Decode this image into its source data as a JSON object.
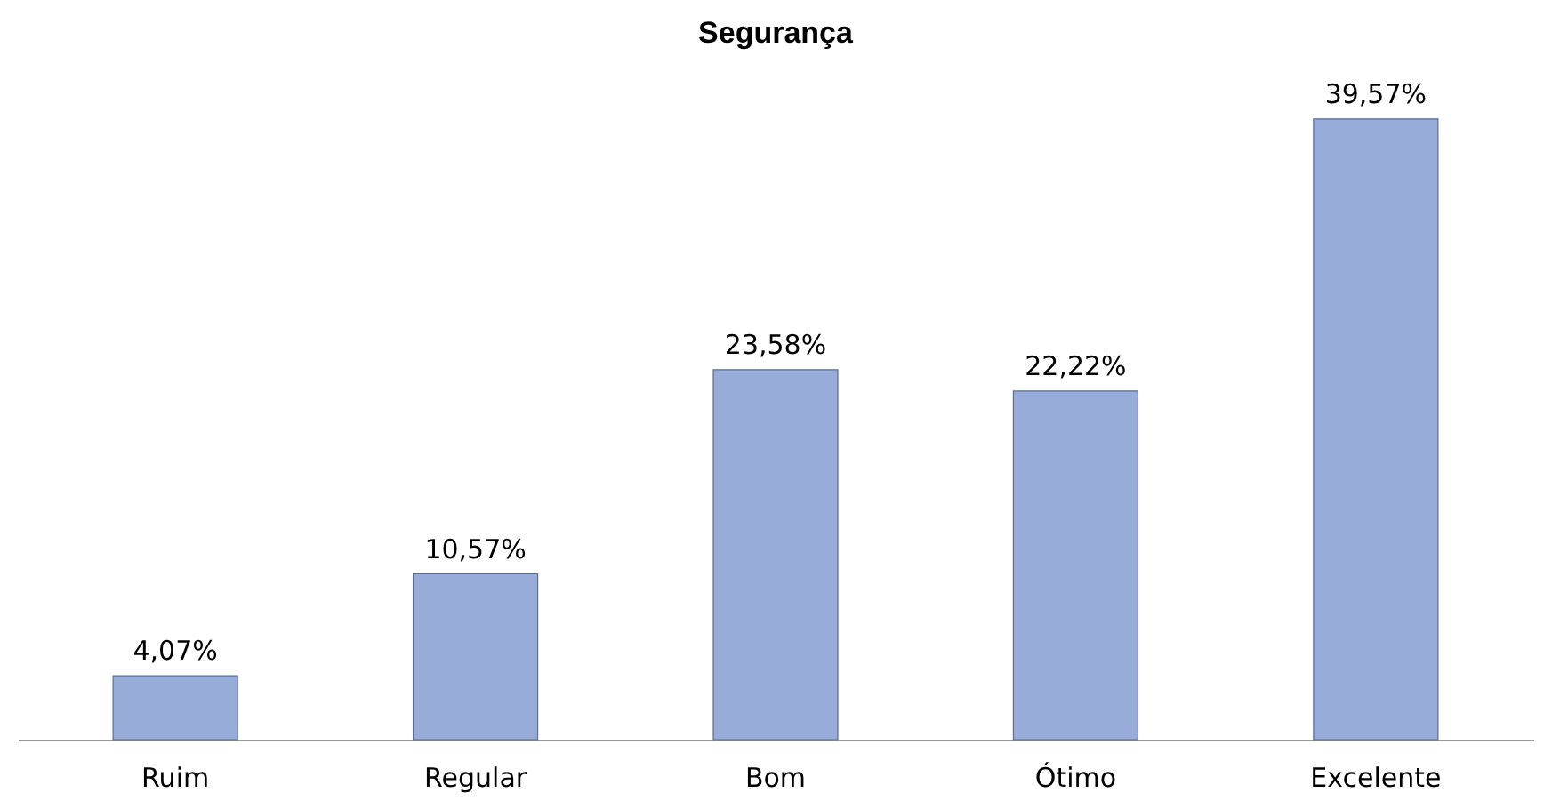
{
  "chart_data": {
    "type": "bar",
    "title": "Segurança",
    "categories": [
      "Ruim",
      "Regular",
      "Bom",
      "Ótimo",
      "Excelente"
    ],
    "values": [
      4.07,
      10.57,
      23.58,
      22.22,
      39.57
    ],
    "value_labels": [
      "4,07%",
      "10,57%",
      "23,58%",
      "22,22%",
      "39,57%"
    ],
    "color": "#97acd8"
  }
}
